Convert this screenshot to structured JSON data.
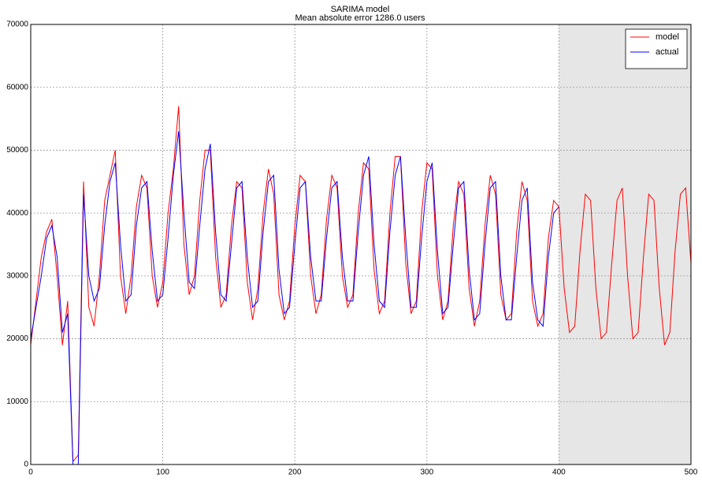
{
  "chart_data": {
    "type": "line",
    "title": "SARIMA model",
    "subtitle": "Mean absolute error 1286.0 users",
    "xlim": [
      0,
      500
    ],
    "xticks": [
      0,
      100,
      200,
      300,
      400,
      500
    ],
    "ylim": [
      0,
      70000
    ],
    "yticks": [
      0,
      10000,
      20000,
      30000,
      40000,
      50000,
      60000,
      70000
    ],
    "grid": true,
    "legend": "upper right",
    "shaded_span": [
      400,
      500
    ],
    "series": [
      {
        "name": "model",
        "color": "#ff0000",
        "x": [
          0,
          4,
          8,
          12,
          16,
          20,
          24,
          28,
          32,
          36,
          40,
          44,
          48,
          52,
          56,
          60,
          64,
          68,
          72,
          76,
          80,
          84,
          88,
          92,
          96,
          100,
          104,
          108,
          112,
          116,
          120,
          124,
          128,
          132,
          136,
          140,
          144,
          148,
          152,
          156,
          160,
          164,
          168,
          172,
          176,
          180,
          184,
          188,
          192,
          196,
          200,
          204,
          208,
          212,
          216,
          220,
          224,
          228,
          232,
          236,
          240,
          244,
          248,
          252,
          256,
          260,
          264,
          268,
          272,
          276,
          280,
          284,
          288,
          292,
          296,
          300,
          304,
          308,
          312,
          316,
          320,
          324,
          328,
          332,
          336,
          340,
          344,
          348,
          352,
          356,
          360,
          364,
          368,
          372,
          376,
          380,
          384,
          388,
          392,
          396,
          400,
          404,
          408,
          412,
          416,
          420,
          424,
          428,
          432,
          436,
          440,
          444,
          448,
          452,
          456,
          460,
          464,
          468,
          472,
          476,
          480,
          484,
          488,
          492,
          496,
          500
        ],
        "values": [
          19000,
          26000,
          33000,
          37000,
          39000,
          30000,
          19000,
          26000,
          500,
          1500,
          45000,
          25000,
          22000,
          30000,
          42000,
          46000,
          50000,
          30000,
          24000,
          30000,
          41000,
          46000,
          44000,
          30000,
          25000,
          29000,
          40000,
          47000,
          57000,
          35000,
          27000,
          30000,
          42000,
          50000,
          50000,
          33000,
          25000,
          27000,
          38000,
          45000,
          44000,
          29000,
          23000,
          28000,
          40000,
          47000,
          43000,
          27000,
          23000,
          26000,
          38000,
          46000,
          45000,
          30000,
          24000,
          27000,
          39000,
          46000,
          44000,
          30000,
          25000,
          27000,
          40000,
          48000,
          47000,
          31000,
          24000,
          26000,
          40000,
          49000,
          49000,
          32000,
          24000,
          26000,
          40000,
          48000,
          47000,
          30000,
          23000,
          26000,
          38000,
          45000,
          43000,
          28000,
          22000,
          26000,
          38000,
          46000,
          43000,
          27000,
          23000,
          24000,
          37000,
          45000,
          42000,
          26000,
          22000,
          24000,
          36000,
          42000,
          41000,
          28000,
          21000,
          22000,
          34000,
          43000,
          42000,
          28000,
          20000,
          21000,
          32000,
          42000,
          44000,
          30000,
          20000,
          21000,
          33000,
          43000,
          42000,
          28000,
          19000,
          21000,
          34000,
          43000,
          44000,
          32000
        ]
      },
      {
        "name": "actual",
        "color": "#0000ff",
        "x": [
          0,
          4,
          8,
          12,
          16,
          20,
          24,
          28,
          32,
          36,
          40,
          44,
          48,
          52,
          56,
          60,
          64,
          68,
          72,
          76,
          80,
          84,
          88,
          92,
          96,
          100,
          104,
          108,
          112,
          116,
          120,
          124,
          128,
          132,
          136,
          140,
          144,
          148,
          152,
          156,
          160,
          164,
          168,
          172,
          176,
          180,
          184,
          188,
          192,
          196,
          200,
          204,
          208,
          212,
          216,
          220,
          224,
          228,
          232,
          236,
          240,
          244,
          248,
          252,
          256,
          260,
          264,
          268,
          272,
          276,
          280,
          284,
          288,
          292,
          296,
          300,
          304,
          308,
          312,
          316,
          320,
          324,
          328,
          332,
          336,
          340,
          344,
          348,
          352,
          356,
          360,
          364,
          368,
          372,
          376,
          380,
          384,
          388,
          392,
          396,
          400
        ],
        "values": [
          20000,
          25000,
          30000,
          36000,
          38000,
          33000,
          21000,
          24000,
          0,
          0,
          43000,
          30000,
          26000,
          28000,
          38000,
          45000,
          48000,
          35000,
          26000,
          27000,
          38000,
          44000,
          45000,
          34000,
          26000,
          27000,
          36000,
          46000,
          53000,
          40000,
          29000,
          28000,
          38000,
          47000,
          51000,
          37000,
          27000,
          26000,
          35000,
          44000,
          45000,
          33000,
          25000,
          26000,
          37000,
          45000,
          46000,
          31000,
          24000,
          25000,
          35000,
          44000,
          45000,
          33000,
          26000,
          26000,
          36000,
          44000,
          45000,
          33000,
          26000,
          26000,
          37000,
          46000,
          49000,
          35000,
          26000,
          25000,
          37000,
          46000,
          49000,
          36000,
          25000,
          25000,
          36000,
          45000,
          48000,
          34000,
          24000,
          25000,
          35000,
          44000,
          45000,
          31000,
          23000,
          24000,
          35000,
          44000,
          45000,
          30000,
          23000,
          23000,
          33000,
          42000,
          44000,
          29000,
          23000,
          22000,
          33000,
          40000,
          41000
        ]
      }
    ]
  }
}
